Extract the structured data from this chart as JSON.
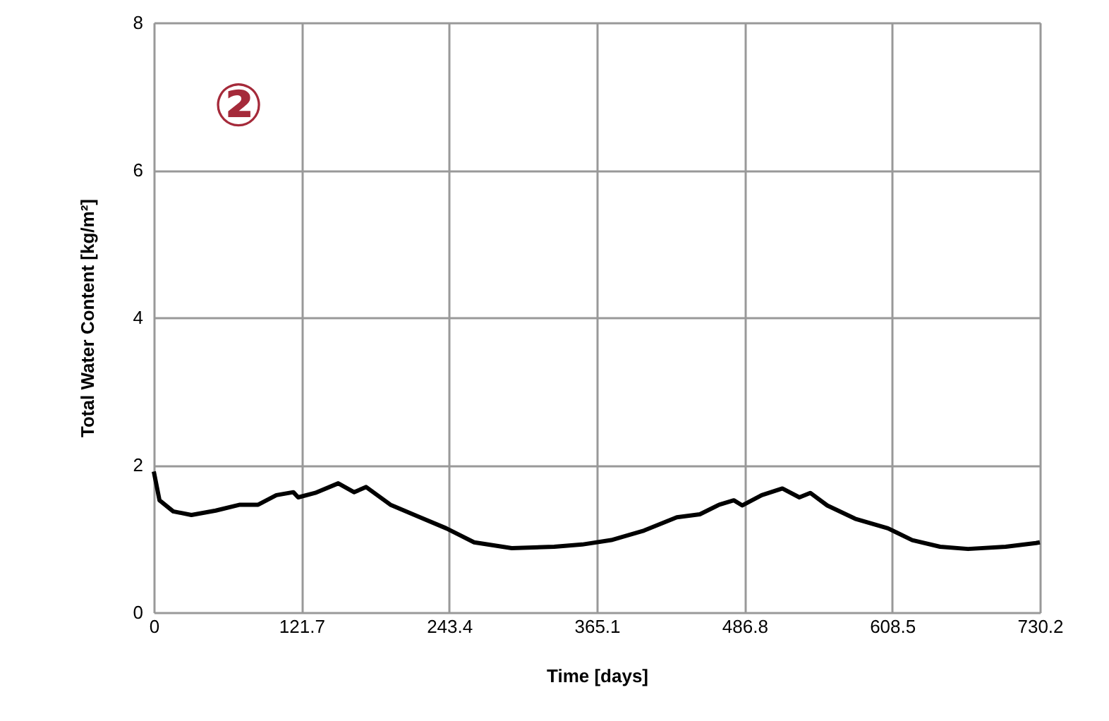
{
  "chart_data": {
    "type": "line",
    "xlabel": "Time [days]",
    "ylabel": "Total Water Content [kg/m²]",
    "annotations": [
      "②"
    ],
    "xlim": [
      0,
      730.2
    ],
    "xticks": [
      0,
      121.7,
      243.4,
      365.1,
      486.8,
      608.5,
      730.2
    ],
    "ylim": [
      0,
      8
    ],
    "yticks": [
      0,
      2,
      4,
      6,
      8
    ],
    "grid": true,
    "marker": "none",
    "line_style": "solid",
    "series": [
      {
        "color": "#000000",
        "x": [
          0,
          4.7,
          16,
          31,
          51,
          71,
          86,
          101,
          115,
          119,
          133,
          152,
          165,
          175,
          195,
          218,
          241,
          264,
          295,
          330,
          353,
          377,
          404,
          431,
          450,
          466,
          478,
          485,
          501,
          518,
          532,
          541,
          555,
          578,
          605,
          625,
          648,
          671,
          702,
          727,
          730.2
        ],
        "values": [
          1.91,
          1.52,
          1.37,
          1.32,
          1.38,
          1.46,
          1.46,
          1.59,
          1.63,
          1.56,
          1.62,
          1.75,
          1.63,
          1.7,
          1.46,
          1.3,
          1.14,
          0.95,
          0.87,
          0.89,
          0.92,
          0.98,
          1.11,
          1.29,
          1.33,
          1.46,
          1.52,
          1.45,
          1.59,
          1.68,
          1.56,
          1.62,
          1.45,
          1.27,
          1.14,
          0.98,
          0.89,
          0.86,
          0.89,
          0.94,
          0.95
        ]
      }
    ]
  }
}
